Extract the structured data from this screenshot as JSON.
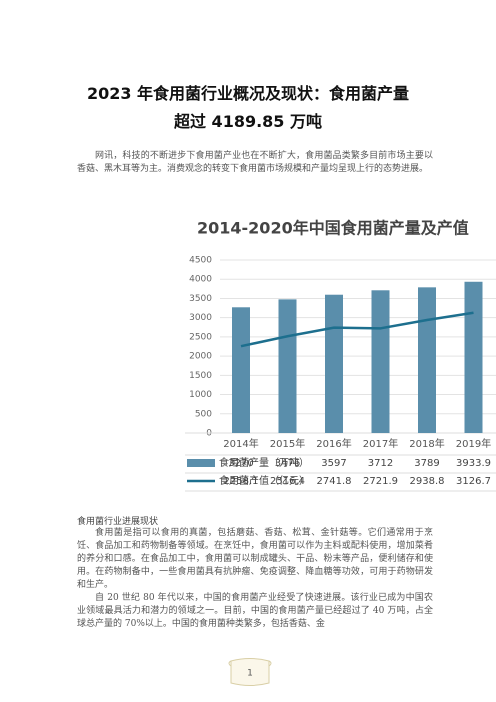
{
  "header": {
    "title": [
      "2023 年食用菌行业概况及现状：食用菌产量",
      "超过 4189.85 万吨"
    ]
  },
  "intro": "网讯，科技的不断进步下食用菌产业也在不断扩大，食用菌品类繁多目前市场主要以香菇、黑木耳等为主。消费观念的转变下食用菌市场规模和产量均呈现上行的态势进展。",
  "chart_data": {
    "type": "bar",
    "title": "2014-2020年中国食用菌产量及产值",
    "categories": [
      "2014年",
      "2015年",
      "2016年",
      "2017年",
      "2018年",
      "2019年"
    ],
    "series": [
      {
        "name": "食用菌产量（万吨）",
        "type": "bar",
        "color": "#5a8eab",
        "values": [
          3270,
          3476,
          3597,
          3712,
          3789,
          3933.9
        ]
      },
      {
        "name": "食用菌产值（亿元）",
        "type": "line",
        "color": "#1d6f8e",
        "values": [
          2258.1,
          2516.4,
          2741.8,
          2721.9,
          2938.8,
          3126.7
        ]
      }
    ],
    "ylim": [
      0,
      4500
    ],
    "yticks": [
      0,
      500,
      1000,
      1500,
      2000,
      2500,
      3000,
      3500,
      4000,
      4500
    ],
    "grid": true
  },
  "section": {
    "heading": "食用菌行业进展现状",
    "paragraphs": [
      "食用菌是指可以食用的真菌，包括蘑菇、香菇、松茸、金针菇等。它们通常用于烹饪、食品加工和药物制备等领域。在烹饪中，食用菌可以作为主料或配料使用，增加菜肴的养分和口感。在食品加工中，食用菌可以制成罐头、干品、粉末等产品，便利储存和使用。在药物制备中，一些食用菌具有抗肿瘤、免疫调整、降血糖等功效，可用于药物研发和生产。",
      "自 20 世纪 80 年代以来，中国的食用菌产业经受了快速进展。该行业已成为中国农业领域最具活力和潜力的领域之一。目前，中国的食用菌产量已经超过了 40 万吨，占全球总产量的 70%以上。中国的食用菌种类繁多，包括香菇、金"
    ]
  },
  "footer": {
    "page": "1"
  }
}
